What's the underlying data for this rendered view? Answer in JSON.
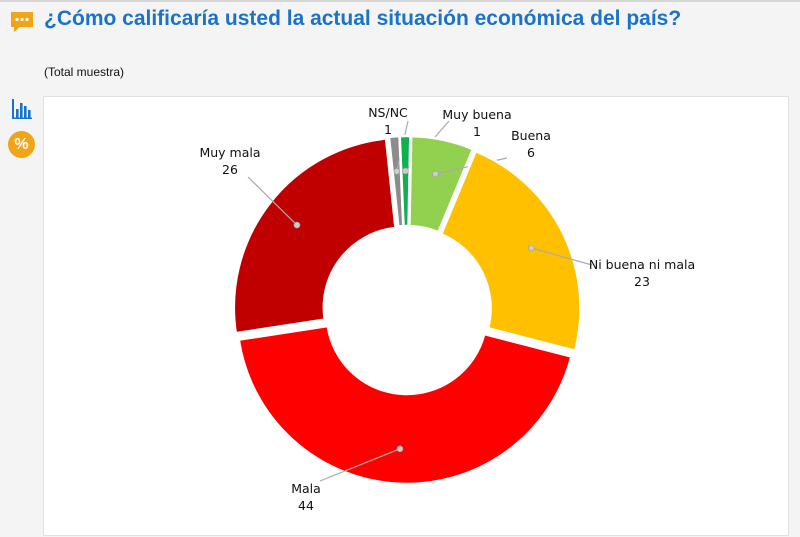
{
  "header": {
    "title": "¿Cómo calificaría usted la actual situación económica del país?",
    "subtitle": "(Total muestra)",
    "title_icon": "speech-bubble-icon",
    "title_color": "#1a73c8"
  },
  "sidebar": {
    "chart_icon": "bar-chart-icon",
    "percent_icon": "percent-icon",
    "percent_label": "%",
    "accent_color": "#f2a417"
  },
  "chart_data": {
    "type": "pie",
    "donut": true,
    "title": "¿Cómo calificaría usted la actual situación económica del país?",
    "subtitle": "(Total muestra)",
    "categories": [
      "NS/NC",
      "Muy buena",
      "Buena",
      "Ni buena ni mala",
      "Mala",
      "Muy mala"
    ],
    "values": [
      1,
      1,
      6,
      23,
      44,
      26
    ],
    "colors": [
      "#8c8c8c",
      "#10b04d",
      "#92d050",
      "#ffc000",
      "#ff0000",
      "#c00000"
    ],
    "legend": "none"
  }
}
